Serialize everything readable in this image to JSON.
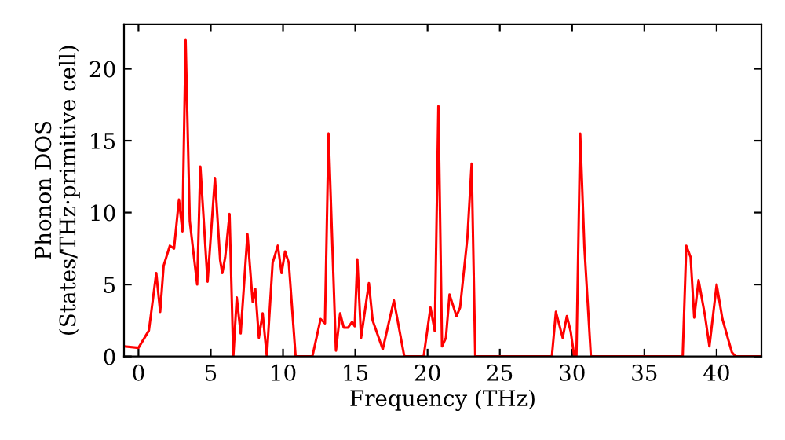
{
  "chart_data": {
    "type": "line",
    "xlabel": "Frequency (THz)",
    "ylabel": "Phonon DOS\n(States/THz·primitive cell)",
    "xlim": [
      -1,
      43.1
    ],
    "ylim": [
      0,
      23.1
    ],
    "xticks": [
      0,
      5,
      10,
      15,
      20,
      25,
      30,
      35,
      40
    ],
    "yticks": [
      0,
      5,
      10,
      15,
      20
    ],
    "grid": false,
    "legend": false,
    "marker": "none",
    "line_style": "solid",
    "series": [
      {
        "color": "#ff0000",
        "x": [
          -1,
          0,
          0.72,
          1.23,
          1.5,
          1.74,
          2.17,
          2.46,
          2.8,
          3.04,
          3.26,
          3.55,
          4.06,
          4.28,
          4.78,
          5.29,
          5.65,
          5.8,
          6,
          6.3,
          6.56,
          6.8,
          7.07,
          7.54,
          7.9,
          8.08,
          8.33,
          8.59,
          8.88,
          9.28,
          9.64,
          9.9,
          10.14,
          10.4,
          10.87,
          12.03,
          12.6,
          12.9,
          13.15,
          13.66,
          13.95,
          14.2,
          14.5,
          14.78,
          14.96,
          15.14,
          15.4,
          15.94,
          16.2,
          16.9,
          17.67,
          18.39,
          19.73,
          20.2,
          20.5,
          20.75,
          21,
          21.27,
          21.52,
          22,
          22.25,
          22.76,
          23.05,
          23.3,
          28.6,
          28.88,
          29.35,
          29.64,
          29.9,
          30.15,
          30.3,
          30.56,
          30.85,
          31.3,
          37.65,
          37.9,
          38.2,
          38.45,
          38.75,
          39.2,
          39.5,
          40,
          40.4,
          41.05,
          41.3,
          43.1
        ],
        "values": [
          0.7,
          0.6,
          1.8,
          5.8,
          3.1,
          6.3,
          7.7,
          7.5,
          10.9,
          8.7,
          22,
          9.4,
          5,
          13.2,
          5.2,
          12.4,
          6.7,
          5.8,
          6.9,
          9.9,
          0,
          4.1,
          1.6,
          8.5,
          3.8,
          4.7,
          1.3,
          3,
          0,
          6.5,
          7.7,
          5.8,
          7.3,
          6.5,
          0,
          0,
          2.6,
          2.3,
          15.5,
          0.4,
          3,
          2,
          2,
          2.4,
          2.1,
          6.75,
          1.3,
          5.1,
          2.5,
          0.5,
          3.9,
          0,
          0,
          3.4,
          1.75,
          17.4,
          0.7,
          1.3,
          4.3,
          2.8,
          3.4,
          8.3,
          13.4,
          0,
          0,
          3.1,
          1.3,
          2.8,
          1.75,
          0,
          0,
          15.5,
          7.6,
          0,
          0,
          7.7,
          6.9,
          2.7,
          5.3,
          2.8,
          0.7,
          5,
          2.6,
          0.3,
          0,
          0
        ]
      }
    ]
  }
}
